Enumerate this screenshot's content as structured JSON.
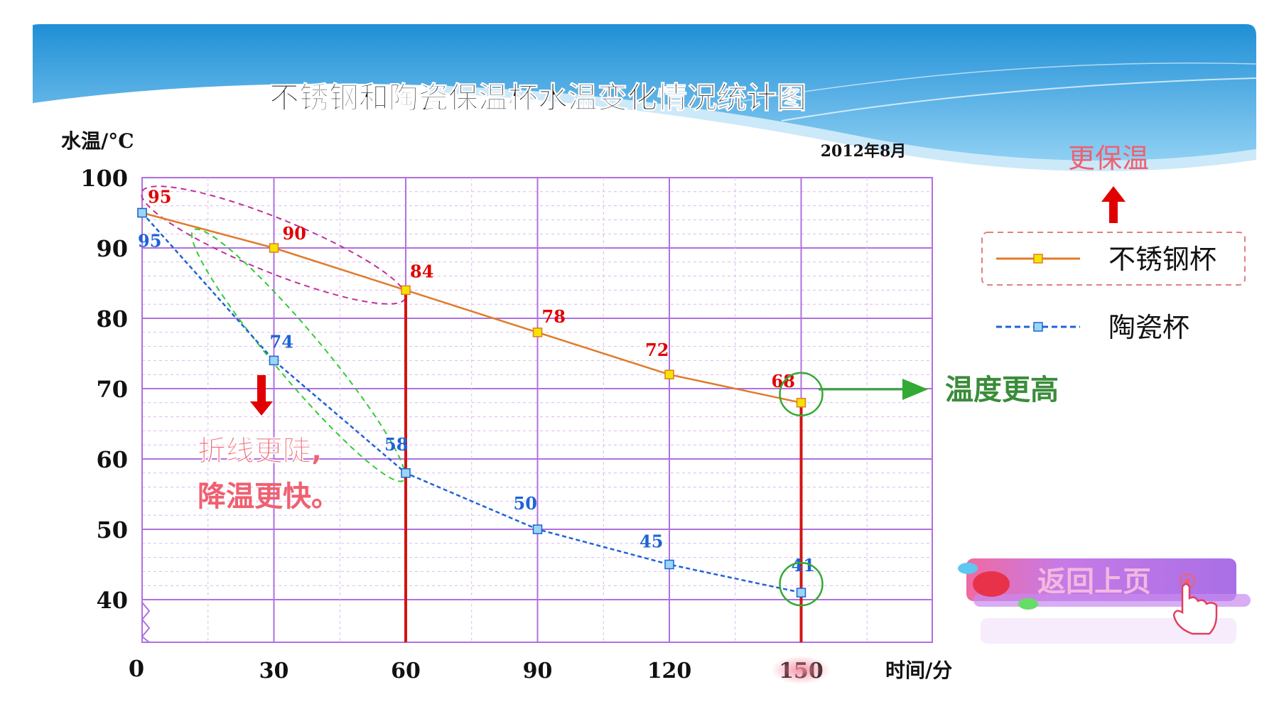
{
  "colors": {
    "banner_top": "#1f8fd6",
    "banner_light": "#bfe3f7",
    "grid_major": "#b070e0",
    "grid_minor": "#d9b9f0",
    "stainless": "#e07b2a",
    "stainless_marker": "#f5e400",
    "ceramic": "#1e63d6",
    "ceramic_marker": "#9ad6f2",
    "red_label": "#e00000",
    "blue_label": "#1e63d6",
    "red_line": "#d21414",
    "annotation_pink": "#f06070",
    "green": "#33aa33",
    "green_text": "#3a8c3a",
    "return_bar": "#b574e6"
  },
  "chart_data": {
    "type": "line",
    "title": "不锈钢和陶瓷保温杯水温变化情况统计图",
    "subtitle": "2012年8月",
    "ylabel": "水温/°C",
    "xlabel": "时间/分",
    "x": [
      0,
      30,
      60,
      90,
      120,
      150
    ],
    "x_tick_labels": [
      "0",
      "30",
      "60",
      "90",
      "120",
      "150"
    ],
    "y_tick_labels": [
      "100",
      "90",
      "80",
      "70",
      "60",
      "50",
      "40"
    ],
    "ylim": [
      40,
      100
    ],
    "axis_break": true,
    "grid": true,
    "legend_position": "right",
    "series": [
      {
        "name": "不锈钢杯",
        "values": [
          95,
          90,
          84,
          78,
          72,
          68
        ],
        "labels": [
          "95",
          "90",
          "84",
          "78",
          "72",
          "68"
        ]
      },
      {
        "name": "陶瓷杯",
        "values": [
          95,
          74,
          58,
          50,
          45,
          41
        ],
        "labels": [
          "95",
          "74",
          "58",
          "50",
          "45",
          "41"
        ]
      }
    ]
  },
  "annotations": {
    "steeper_line1": "折线更陡,",
    "steeper_line2": "降温更快。",
    "warmer": "温度更高",
    "better_insulation": "更保温"
  },
  "nav": {
    "return_button": "返回上页"
  }
}
